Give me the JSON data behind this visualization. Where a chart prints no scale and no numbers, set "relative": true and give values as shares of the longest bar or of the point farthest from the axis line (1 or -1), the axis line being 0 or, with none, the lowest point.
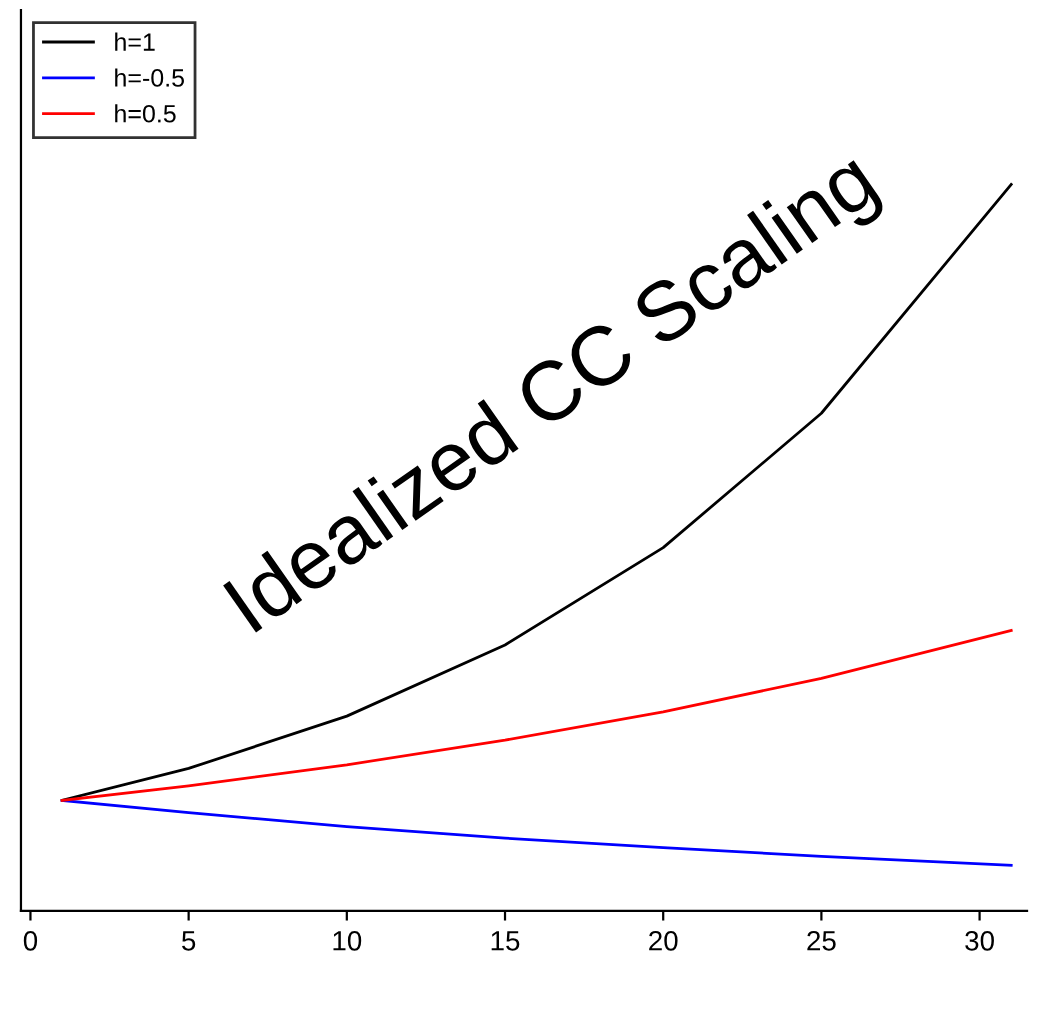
{
  "chart_data": {
    "type": "line",
    "relative": true,
    "x": [
      1,
      5,
      10,
      15,
      20,
      25,
      31
    ],
    "xlim": [
      -0.3,
      31.5
    ],
    "xticks": [
      0,
      5,
      10,
      15,
      20,
      25,
      30
    ],
    "series": [
      {
        "name": "h=1",
        "color": "#000000",
        "values": [
          0.152,
          0.196,
          0.268,
          0.366,
          0.5,
          0.685,
          1.0
        ]
      },
      {
        "name": "h=-0.5",
        "color": "#0000ff",
        "values": [
          0.152,
          0.135,
          0.116,
          0.1,
          0.087,
          0.075,
          0.0625
        ]
      },
      {
        "name": "h=0.5",
        "color": "#ff0000",
        "values": [
          0.152,
          0.172,
          0.201,
          0.235,
          0.274,
          0.32,
          0.386
        ]
      }
    ],
    "annotations": [
      "Idealized CC Scaling"
    ],
    "legend": "top left",
    "grid": false
  }
}
